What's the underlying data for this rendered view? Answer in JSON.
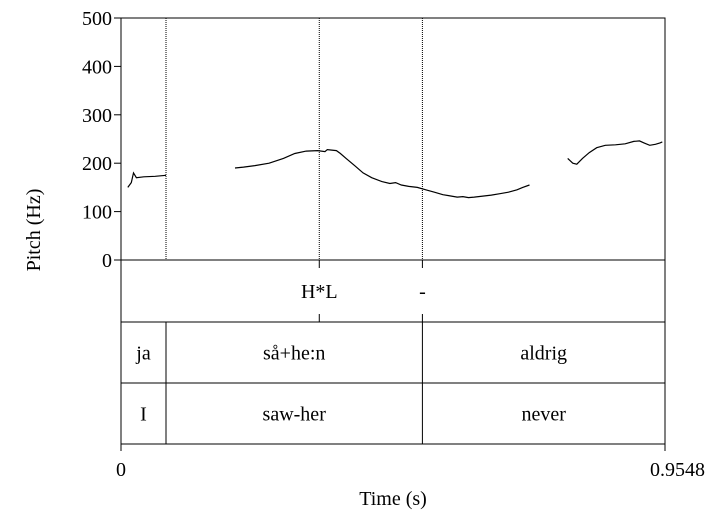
{
  "chart_data": {
    "type": "line",
    "xlabel": "Time (s)",
    "ylabel": "Pitch (Hz)",
    "xlim": [
      0,
      0.9548
    ],
    "ylim": [
      0,
      500
    ],
    "x_ticks": [
      "0",
      "0.9548"
    ],
    "y_ticks": [
      0,
      100,
      200,
      300,
      400,
      500
    ],
    "boundaries": [
      0.079,
      0.348,
      0.529
    ],
    "series": [
      {
        "segments": [
          [
            [
              0.012,
              150
            ],
            [
              0.018,
              160
            ],
            [
              0.022,
              180
            ],
            [
              0.027,
              170
            ],
            [
              0.04,
              172
            ],
            [
              0.06,
              173
            ],
            [
              0.079,
              175
            ]
          ],
          [
            [
              0.2,
              190
            ],
            [
              0.215,
              192
            ],
            [
              0.235,
              195
            ],
            [
              0.26,
              200
            ],
            [
              0.285,
              210
            ],
            [
              0.305,
              220
            ],
            [
              0.325,
              225
            ],
            [
              0.345,
              226
            ],
            [
              0.358,
              224
            ],
            [
              0.362,
              228
            ],
            [
              0.378,
              226
            ],
            [
              0.385,
              220
            ],
            [
              0.395,
              210
            ],
            [
              0.41,
              195
            ],
            [
              0.425,
              180
            ],
            [
              0.44,
              170
            ],
            [
              0.458,
              162
            ],
            [
              0.472,
              158
            ],
            [
              0.482,
              160
            ],
            [
              0.492,
              155
            ],
            [
              0.505,
              152
            ],
            [
              0.52,
              150
            ],
            [
              0.535,
              145
            ],
            [
              0.55,
              140
            ],
            [
              0.565,
              135
            ],
            [
              0.575,
              133
            ],
            [
              0.59,
              130
            ],
            [
              0.6,
              131
            ],
            [
              0.61,
              129
            ],
            [
              0.62,
              130
            ],
            [
              0.635,
              132
            ],
            [
              0.65,
              134
            ],
            [
              0.665,
              137
            ],
            [
              0.68,
              140
            ],
            [
              0.695,
              145
            ],
            [
              0.705,
              150
            ],
            [
              0.717,
              155
            ]
          ],
          [
            [
              0.784,
              210
            ],
            [
              0.793,
              200
            ],
            [
              0.8,
              198
            ],
            [
              0.81,
              210
            ],
            [
              0.822,
              222
            ],
            [
              0.835,
              232
            ],
            [
              0.85,
              237
            ],
            [
              0.868,
              238
            ],
            [
              0.885,
              240
            ],
            [
              0.9,
              245
            ],
            [
              0.91,
              246
            ],
            [
              0.918,
              242
            ],
            [
              0.928,
              237
            ],
            [
              0.938,
              239
            ],
            [
              0.946,
              242
            ],
            [
              0.95,
              244
            ]
          ]
        ]
      }
    ],
    "tiers": [
      {
        "points": [
          {
            "time": 0.348,
            "label": "H*L"
          },
          {
            "time": 0.529,
            "label": "-"
          }
        ]
      },
      {
        "intervals": [
          {
            "start": 0,
            "end": 0.079,
            "label": "ja"
          },
          {
            "start": 0.079,
            "end": 0.529,
            "label": "så+he:n"
          },
          {
            "start": 0.529,
            "end": 0.9548,
            "label": "aldrig"
          }
        ]
      },
      {
        "intervals": [
          {
            "start": 0,
            "end": 0.079,
            "label": "I"
          },
          {
            "start": 0.079,
            "end": 0.529,
            "label": "saw-her"
          },
          {
            "start": 0.529,
            "end": 0.9548,
            "label": "never"
          }
        ]
      }
    ]
  }
}
